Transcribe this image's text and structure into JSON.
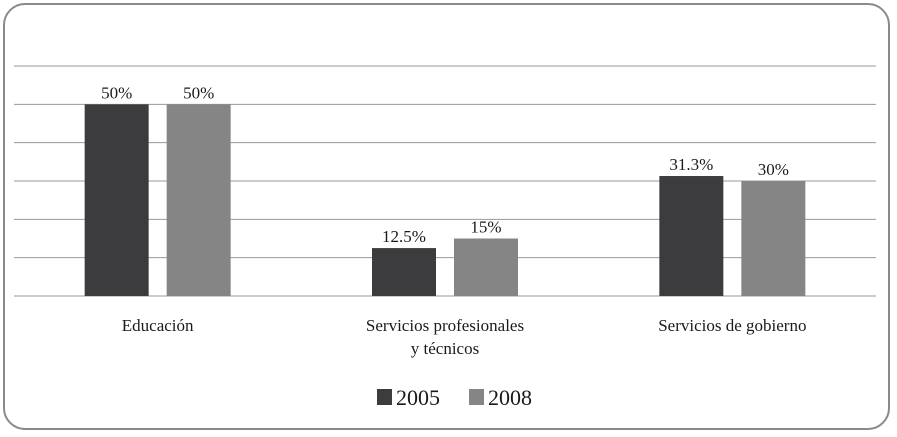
{
  "chart_data": {
    "type": "bar",
    "title": "",
    "xlabel": "",
    "ylabel": "",
    "ylim": [
      0,
      60
    ],
    "grid": true,
    "legend_position": "bottom-center",
    "categories": [
      [
        "Educación"
      ],
      [
        "Servicios profesionales",
        "y técnicos"
      ],
      [
        "Servicios de gobierno"
      ]
    ],
    "series": [
      {
        "name": "2005",
        "color": "#3c3c3e",
        "values": [
          50,
          12.5,
          31.3
        ],
        "labels": [
          "50%",
          "12.5%",
          "31.3%"
        ]
      },
      {
        "name": "2008",
        "color": "#858585",
        "values": [
          50,
          15,
          30
        ],
        "labels": [
          "50%",
          "15%",
          "30%"
        ]
      }
    ]
  }
}
